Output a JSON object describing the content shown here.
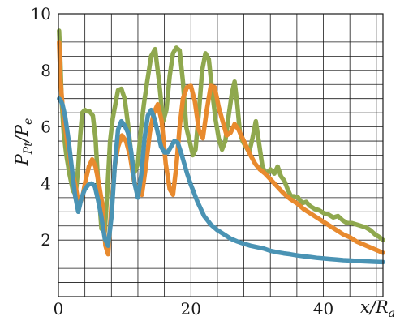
{
  "chart_data": {
    "type": "line",
    "xlabel": {
      "main": "x/R",
      "sub": "a"
    },
    "ylabel": {
      "main": "P",
      "sub": "Pt",
      "tail": "/P",
      "tail_sub": "e"
    },
    "xlim": [
      0,
      49
    ],
    "ylim": [
      0,
      10
    ],
    "x_ticks": [
      0,
      20,
      40
    ],
    "x_tick_labels": [
      "0",
      "20",
      "40"
    ],
    "y_ticks": [
      2,
      4,
      6,
      8,
      10
    ],
    "y_tick_labels": [
      "2",
      "4",
      "6",
      "8",
      "10"
    ],
    "grid": true,
    "x_grid_step": 4,
    "y_grid_step": 0.5,
    "series": [
      {
        "color": "#8fa84e",
        "x": [
          0.1,
          0.3,
          0.5,
          0.8,
          1.2,
          1.7,
          2.2,
          2.6,
          3.0,
          3.3,
          3.6,
          4.0,
          4.3,
          4.7,
          5.2,
          5.6,
          6.0,
          6.5,
          7.0,
          7.4,
          7.8,
          8.2,
          8.6,
          9.0,
          9.5,
          10.0,
          10.5,
          11.0,
          11.5,
          12.0,
          12.4,
          12.9,
          13.4,
          14.0,
          14.6,
          15.2,
          15.8,
          16.3,
          16.8,
          17.3,
          17.8,
          18.3,
          18.8,
          19.3,
          19.8,
          20.3,
          20.7,
          21.2,
          21.7,
          22.2,
          22.7,
          23.2,
          23.7,
          24.2,
          24.7,
          25.2,
          25.7,
          26.2,
          26.6,
          27.0,
          27.4,
          27.8,
          28.3,
          28.8,
          29.3,
          29.8,
          30.3,
          30.8,
          31.4,
          32.0,
          32.6,
          33.1,
          33.6,
          34.1,
          34.6,
          35.1,
          35.6,
          36.2,
          36.8,
          37.4,
          38.0,
          38.7,
          39.4,
          40.1,
          40.8,
          41.5,
          42.2,
          42.9,
          43.6,
          44.3,
          45.0,
          45.7,
          46.4,
          47.1,
          47.8,
          48.5,
          49.0
        ],
        "values": [
          9.4,
          8.3,
          6.9,
          5.8,
          5.0,
          4.3,
          3.75,
          3.6,
          4.6,
          5.7,
          6.5,
          6.6,
          6.55,
          6.55,
          6.4,
          5.6,
          4.0,
          2.4,
          2.3,
          3.8,
          5.5,
          6.3,
          6.8,
          7.3,
          7.35,
          7.0,
          6.1,
          5.0,
          4.4,
          4.7,
          5.8,
          6.8,
          7.6,
          8.5,
          8.75,
          7.6,
          6.2,
          6.6,
          7.8,
          8.6,
          8.8,
          8.7,
          7.6,
          6.0,
          5.5,
          5.0,
          5.2,
          6.5,
          8.0,
          8.6,
          8.4,
          7.3,
          6.3,
          5.6,
          5.2,
          5.5,
          6.4,
          7.2,
          7.6,
          6.8,
          5.8,
          5.5,
          5.3,
          5.1,
          5.6,
          6.2,
          5.4,
          4.6,
          4.3,
          4.5,
          4.35,
          4.6,
          4.25,
          4.1,
          3.8,
          3.55,
          3.55,
          3.5,
          3.3,
          3.35,
          3.2,
          3.1,
          3.05,
          2.95,
          2.9,
          2.8,
          2.85,
          2.7,
          2.6,
          2.6,
          2.55,
          2.5,
          2.45,
          2.35,
          2.2,
          2.1,
          2.0
        ]
      },
      {
        "color": "#e88a2e",
        "x": [
          0.1,
          0.3,
          0.6,
          1.0,
          1.5,
          2.0,
          2.6,
          3.1,
          3.6,
          4.1,
          4.6,
          5.1,
          5.6,
          6.1,
          6.6,
          7.1,
          7.5,
          8.0,
          8.5,
          9.0,
          9.6,
          10.2,
          10.8,
          11.4,
          12.0,
          12.6,
          13.2,
          13.8,
          14.4,
          15.0,
          15.6,
          16.2,
          16.8,
          17.3,
          17.8,
          18.3,
          18.8,
          19.4,
          20.0,
          20.6,
          21.2,
          21.8,
          22.4,
          23.0,
          23.6,
          24.2,
          24.8,
          25.4,
          26.0,
          26.6,
          27.2,
          27.8,
          28.4,
          29.0,
          29.7,
          30.4,
          31.2,
          32.0,
          33.0,
          34.0,
          35.0,
          36.0,
          37.0,
          38.0,
          39.0,
          40.0,
          41.0,
          42.0,
          43.0,
          44.0,
          45.0,
          46.0,
          47.0,
          48.0,
          49.0
        ],
        "values": [
          9.0,
          7.7,
          6.8,
          6.0,
          5.2,
          4.5,
          3.9,
          3.2,
          3.5,
          4.1,
          4.6,
          4.85,
          4.6,
          4.0,
          3.3,
          1.8,
          1.5,
          3.2,
          4.6,
          5.3,
          5.7,
          5.5,
          5.0,
          4.1,
          3.7,
          3.6,
          4.6,
          5.8,
          6.5,
          6.8,
          6.2,
          4.7,
          3.8,
          3.6,
          4.6,
          6.0,
          7.0,
          7.4,
          7.45,
          6.9,
          5.9,
          5.6,
          6.6,
          7.45,
          7.4,
          6.7,
          6.2,
          5.7,
          5.8,
          6.1,
          5.9,
          5.6,
          5.3,
          5.0,
          4.7,
          4.5,
          4.35,
          4.15,
          3.9,
          3.65,
          3.45,
          3.3,
          3.1,
          2.95,
          2.8,
          2.65,
          2.5,
          2.35,
          2.2,
          2.1,
          1.95,
          1.85,
          1.75,
          1.65,
          1.55
        ]
      },
      {
        "color": "#4a93b4",
        "x": [
          0.1,
          0.3,
          0.6,
          1.0,
          1.5,
          2.0,
          2.5,
          3.0,
          3.5,
          4.0,
          4.5,
          5.0,
          5.5,
          6.0,
          6.5,
          7.0,
          7.5,
          8.0,
          8.5,
          9.0,
          9.5,
          10.0,
          10.5,
          11.0,
          11.5,
          12.0,
          12.5,
          13.0,
          13.5,
          14.0,
          14.5,
          15.0,
          15.5,
          16.0,
          16.5,
          17.0,
          17.5,
          18.0,
          18.5,
          19.0,
          19.5,
          20.0,
          21.0,
          22.0,
          23.0,
          24.0,
          25.0,
          26.0,
          27.0,
          28.0,
          29.0,
          30.0,
          31.0,
          32.0,
          33.0,
          34.0,
          35.0,
          36.0,
          37.0,
          38.0,
          39.0,
          40.0,
          41.0,
          42.0,
          43.0,
          44.0,
          45.0,
          46.0,
          47.0,
          48.0,
          49.0
        ],
        "values": [
          7.0,
          6.95,
          6.8,
          6.4,
          5.6,
          4.6,
          3.6,
          3.0,
          3.5,
          3.8,
          3.95,
          4.0,
          3.9,
          3.4,
          2.8,
          2.05,
          1.8,
          2.8,
          4.6,
          5.9,
          6.2,
          6.05,
          5.8,
          5.1,
          4.0,
          3.5,
          4.3,
          5.6,
          6.4,
          6.6,
          6.3,
          5.8,
          5.3,
          5.1,
          5.1,
          5.3,
          5.5,
          5.45,
          5.1,
          4.7,
          4.3,
          3.95,
          3.35,
          2.85,
          2.55,
          2.35,
          2.2,
          2.05,
          1.95,
          1.87,
          1.8,
          1.75,
          1.7,
          1.62,
          1.57,
          1.53,
          1.5,
          1.46,
          1.43,
          1.4,
          1.37,
          1.35,
          1.33,
          1.31,
          1.29,
          1.28,
          1.26,
          1.25,
          1.24,
          1.23,
          1.22
        ]
      }
    ]
  }
}
